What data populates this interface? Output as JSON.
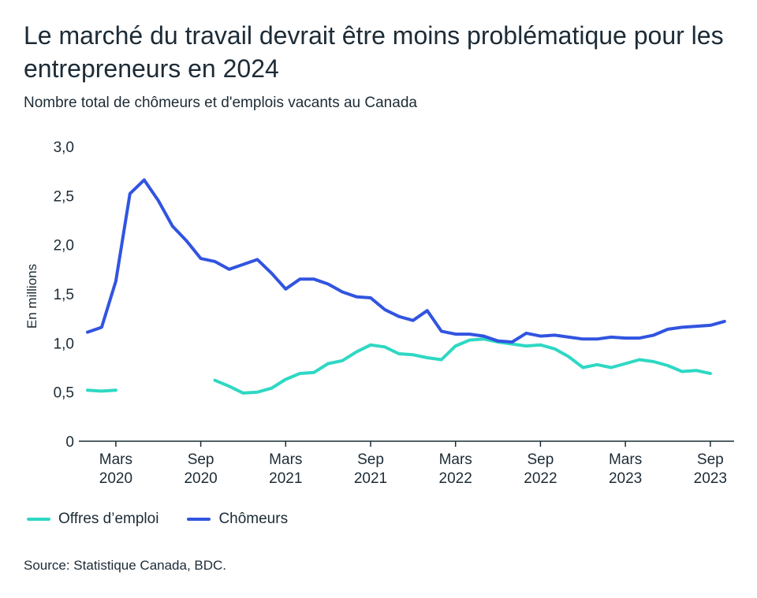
{
  "header": {
    "title": "Le marché du travail devrait être moins problématique pour les entrepreneurs en 2024",
    "subtitle": "Nombre total de chômeurs et d'emplois vacants au Canada"
  },
  "legend": {
    "items": [
      {
        "label": "Offres d’emploi",
        "color": "#2ed8c3"
      },
      {
        "label": "Chômeurs",
        "color": "#3154e0"
      }
    ]
  },
  "source": "Source: Statistique Canada, BDC.",
  "chart_data": {
    "type": "line",
    "ylabel": "En millions",
    "ylim": [
      0,
      3.0
    ],
    "yticks": [
      {
        "value": 0,
        "label": "0"
      },
      {
        "value": 0.5,
        "label": "0,5"
      },
      {
        "value": 1.0,
        "label": "1,0"
      },
      {
        "value": 1.5,
        "label": "1,5"
      },
      {
        "value": 2.0,
        "label": "2,0"
      },
      {
        "value": 2.5,
        "label": "2,5"
      },
      {
        "value": 3.0,
        "label": "3,0"
      }
    ],
    "xticks": [
      {
        "date": "2020-03",
        "month": "Mars",
        "year": "2020"
      },
      {
        "date": "2020-09",
        "month": "Sep",
        "year": "2020"
      },
      {
        "date": "2021-03",
        "month": "Mars",
        "year": "2021"
      },
      {
        "date": "2021-09",
        "month": "Sep",
        "year": "2021"
      },
      {
        "date": "2022-03",
        "month": "Mars",
        "year": "2022"
      },
      {
        "date": "2022-09",
        "month": "Sep",
        "year": "2022"
      },
      {
        "date": "2023-03",
        "month": "Mars",
        "year": "2023"
      },
      {
        "date": "2023-09",
        "month": "Sep",
        "year": "2023"
      }
    ],
    "x": [
      "2020-01",
      "2020-02",
      "2020-03",
      "2020-04",
      "2020-05",
      "2020-06",
      "2020-07",
      "2020-08",
      "2020-09",
      "2020-10",
      "2020-11",
      "2020-12",
      "2021-01",
      "2021-02",
      "2021-03",
      "2021-04",
      "2021-05",
      "2021-06",
      "2021-07",
      "2021-08",
      "2021-09",
      "2021-10",
      "2021-11",
      "2021-12",
      "2022-01",
      "2022-02",
      "2022-03",
      "2022-04",
      "2022-05",
      "2022-06",
      "2022-07",
      "2022-08",
      "2022-09",
      "2022-10",
      "2022-11",
      "2022-12",
      "2023-01",
      "2023-02",
      "2023-03",
      "2023-04",
      "2023-05",
      "2023-06",
      "2023-07",
      "2023-08",
      "2023-09",
      "2023-10"
    ],
    "series": [
      {
        "name": "Offres d’emploi",
        "color": "#2ed8c3",
        "values": [
          0.52,
          0.51,
          0.52,
          null,
          null,
          null,
          null,
          null,
          null,
          0.62,
          0.56,
          0.49,
          0.5,
          0.54,
          0.63,
          0.69,
          0.7,
          0.79,
          0.82,
          0.91,
          0.98,
          0.96,
          0.89,
          0.88,
          0.85,
          0.83,
          0.97,
          1.03,
          1.04,
          1.01,
          0.99,
          0.97,
          0.98,
          0.94,
          0.86,
          0.75,
          0.78,
          0.75,
          0.79,
          0.83,
          0.81,
          0.77,
          0.71,
          0.72,
          0.69,
          null
        ]
      },
      {
        "name": "Chômeurs",
        "color": "#3154e0",
        "values": [
          1.11,
          1.16,
          1.63,
          2.52,
          2.66,
          2.45,
          2.19,
          2.04,
          1.86,
          1.83,
          1.75,
          1.8,
          1.85,
          1.71,
          1.55,
          1.65,
          1.65,
          1.6,
          1.52,
          1.47,
          1.46,
          1.34,
          1.27,
          1.23,
          1.33,
          1.12,
          1.09,
          1.09,
          1.07,
          1.02,
          1.01,
          1.1,
          1.07,
          1.08,
          1.06,
          1.04,
          1.04,
          1.06,
          1.05,
          1.05,
          1.08,
          1.14,
          1.16,
          1.17,
          1.18,
          1.22
        ]
      }
    ]
  }
}
